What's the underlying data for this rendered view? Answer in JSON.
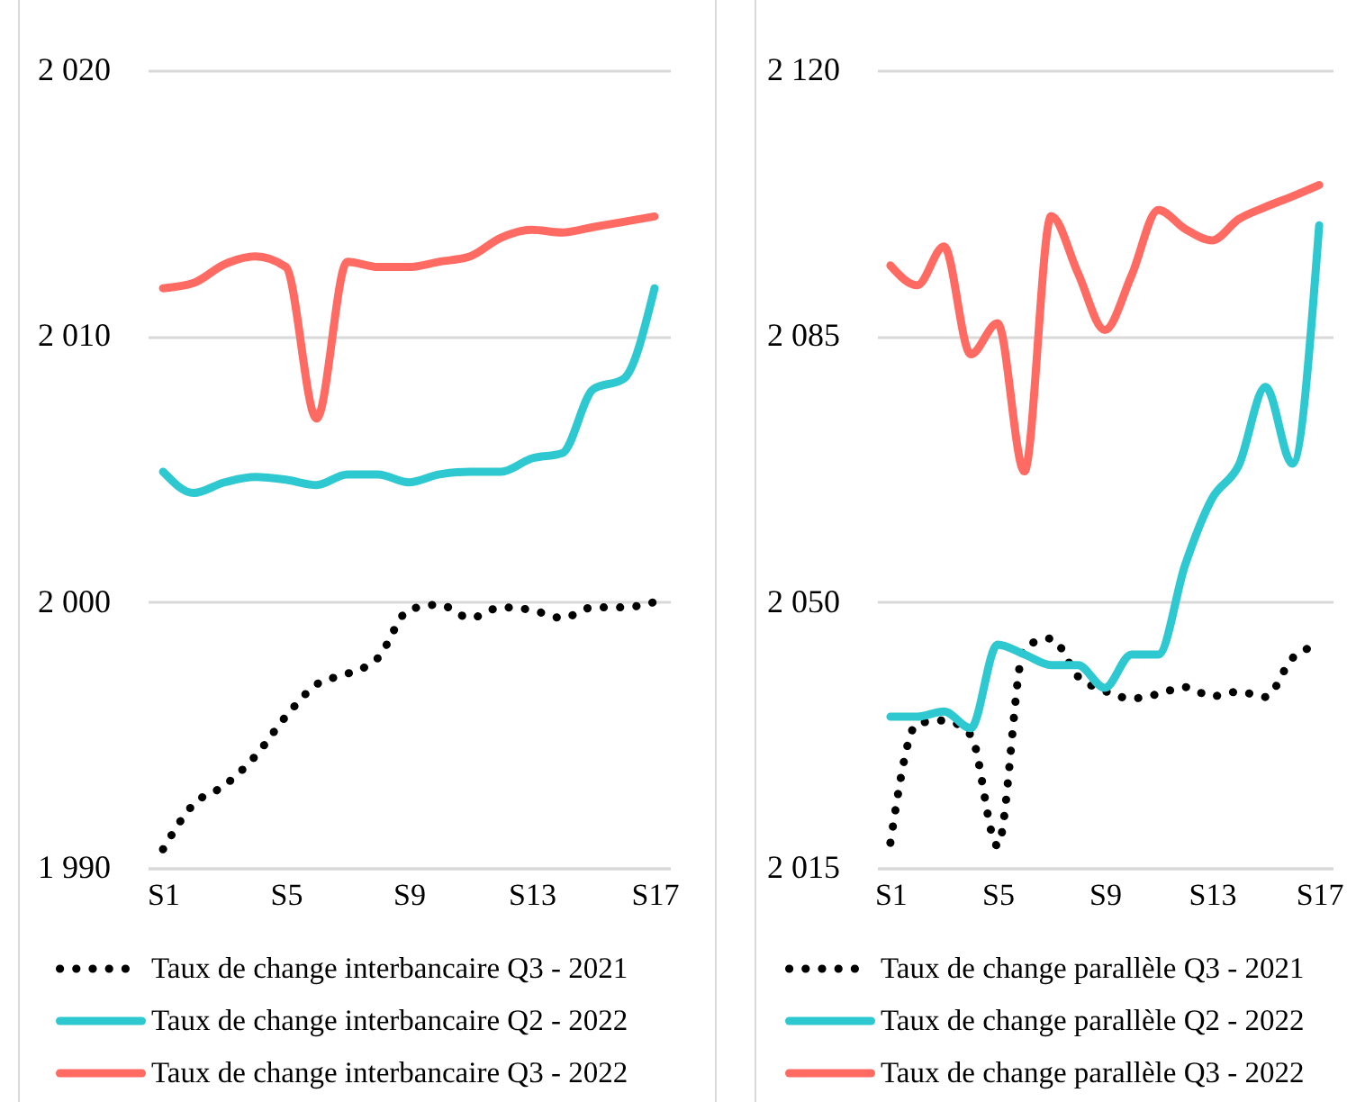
{
  "chart_data": [
    {
      "type": "line",
      "categories": [
        "S1",
        null,
        null,
        null,
        "S5",
        null,
        null,
        null,
        "S9",
        null,
        null,
        null,
        "S13",
        null,
        null,
        null,
        "S17"
      ],
      "series": [
        {
          "name": "Taux de change interbancaire Q3 - 2021",
          "color": "#000000",
          "line_style": "dotted",
          "values": [
            1990.7,
            1992.4,
            1993.1,
            1994.2,
            1995.7,
            1996.9,
            1997.3,
            1997.9,
            1999.7,
            1999.9,
            1999.4,
            1999.8,
            1999.7,
            1999.4,
            1999.8,
            1999.8,
            2000.0
          ]
        },
        {
          "name": "Taux de change interbancaire Q2 - 2022",
          "color": "#2ec9d0",
          "line_style": "solid",
          "values": [
            2004.9,
            2004.1,
            2004.5,
            2004.7,
            2004.6,
            2004.4,
            2004.8,
            2004.8,
            2004.5,
            2004.8,
            2004.9,
            2004.9,
            2005.4,
            2005.6,
            2008.0,
            2008.4,
            2011.8
          ]
        },
        {
          "name": "Taux de change interbancaire Q3 - 2022",
          "color": "#ff6b62",
          "line_style": "solid",
          "values": [
            2011.8,
            2012.0,
            2012.7,
            2013.0,
            2012.6,
            2006.9,
            2012.8,
            2012.6,
            2012.6,
            2012.8,
            2013.0,
            2013.7,
            2014.0,
            2013.9,
            2014.1,
            2014.3,
            2014.5
          ]
        }
      ],
      "ylim": [
        1990,
        2020
      ],
      "yticks": [
        {
          "value": 1990,
          "label": "1 990"
        },
        {
          "value": 2000,
          "label": "2 000"
        },
        {
          "value": 2010,
          "label": "2 010"
        },
        {
          "value": 2020,
          "label": "2 020"
        }
      ],
      "grid": "y",
      "legend": "bottom"
    },
    {
      "type": "line",
      "categories": [
        "S1",
        null,
        null,
        null,
        "S5",
        null,
        null,
        null,
        "S9",
        null,
        null,
        null,
        "S13",
        null,
        null,
        null,
        "S17"
      ],
      "series": [
        {
          "name": "Taux de change parallèle Q3 - 2021",
          "color": "#000000",
          "line_style": "dotted",
          "values": [
            2018.3,
            2034.0,
            2034.4,
            2032.5,
            2017.9,
            2044.0,
            2045.2,
            2040.2,
            2038.3,
            2037.3,
            2037.9,
            2038.8,
            2037.6,
            2038.2,
            2037.5,
            2042.6,
            2044.3
          ]
        },
        {
          "name": "Taux de change parallèle Q2 - 2022",
          "color": "#2ec9d0",
          "line_style": "solid",
          "values": [
            2034.9,
            2034.9,
            2035.6,
            2033.4,
            2044.4,
            2043.1,
            2041.7,
            2041.7,
            2038.7,
            2043.1,
            2043.1,
            2054.9,
            2063.6,
            2068.0,
            2078.3,
            2068.2,
            2099.6
          ]
        },
        {
          "name": "Taux de change parallèle Q3 - 2022",
          "color": "#ff6b62",
          "line_style": "solid",
          "values": [
            2094.3,
            2091.7,
            2096.8,
            2082.6,
            2086.7,
            2067.2,
            2100.8,
            2093.3,
            2085.8,
            2093.0,
            2101.6,
            2099.1,
            2097.6,
            2100.4,
            2102.0,
            2103.4,
            2104.9
          ]
        }
      ],
      "ylim": [
        2015,
        2120
      ],
      "yticks": [
        {
          "value": 2015,
          "label": "2 015"
        },
        {
          "value": 2050,
          "label": "2 050"
        },
        {
          "value": 2085,
          "label": "2 085"
        },
        {
          "value": 2120,
          "label": "2 120"
        }
      ],
      "grid": "y",
      "legend": "bottom"
    }
  ]
}
